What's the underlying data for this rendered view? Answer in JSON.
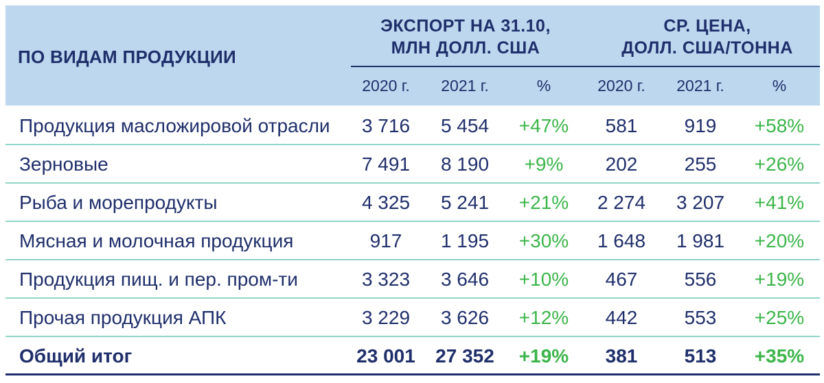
{
  "header": {
    "product_col": "ПО ВИДАМ ПРОДУКЦИИ",
    "export_group": "ЭКСПОРТ НА 31.10,\nМЛН ДОЛЛ. США",
    "price_group": "СР. ЦЕНА,\nДОЛЛ. США/ТОННА",
    "sub_columns": [
      "2020 г.",
      "2021 г.",
      "%",
      "2020 г.",
      "2021 г.",
      "%"
    ]
  },
  "rows": [
    {
      "name": "Продукция масложировой отрасли",
      "exp2020": "3 716",
      "exp2021": "5 454",
      "exp_pct": "+47%",
      "pr2020": "581",
      "pr2021": "919",
      "pr_pct": "+58%"
    },
    {
      "name": "Зерновые",
      "exp2020": "7 491",
      "exp2021": "8 190",
      "exp_pct": "+9%",
      "pr2020": "202",
      "pr2021": "255",
      "pr_pct": "+26%"
    },
    {
      "name": "Рыба и морепродукты",
      "exp2020": "4 325",
      "exp2021": "5 241",
      "exp_pct": "+21%",
      "pr2020": "2 274",
      "pr2021": "3 207",
      "pr_pct": "+41%"
    },
    {
      "name": "Мясная и молочная продукция",
      "exp2020": "917",
      "exp2021": "1 195",
      "exp_pct": "+30%",
      "pr2020": "1 648",
      "pr2021": "1 981",
      "pr_pct": "+20%"
    },
    {
      "name": "Продукция пищ. и пер. пром-ти",
      "exp2020": "3 323",
      "exp2021": "3 646",
      "exp_pct": "+10%",
      "pr2020": "467",
      "pr2021": "556",
      "pr_pct": "+19%"
    },
    {
      "name": "Прочая продукция АПК",
      "exp2020": "3 229",
      "exp2021": "3 626",
      "exp_pct": "+12%",
      "pr2020": "442",
      "pr2021": "553",
      "pr_pct": "+25%"
    }
  ],
  "total": {
    "name": "Общий итог",
    "exp2020": "23 001",
    "exp2021": "27 352",
    "exp_pct": "+19%",
    "pr2020": "381",
    "pr2021": "513",
    "pr_pct": "+35%"
  },
  "colors": {
    "header_bg": "#bdd7ee",
    "text": "#1f2f6b",
    "positive": "#3cb54a",
    "row_separator": "#8fd4c9"
  }
}
